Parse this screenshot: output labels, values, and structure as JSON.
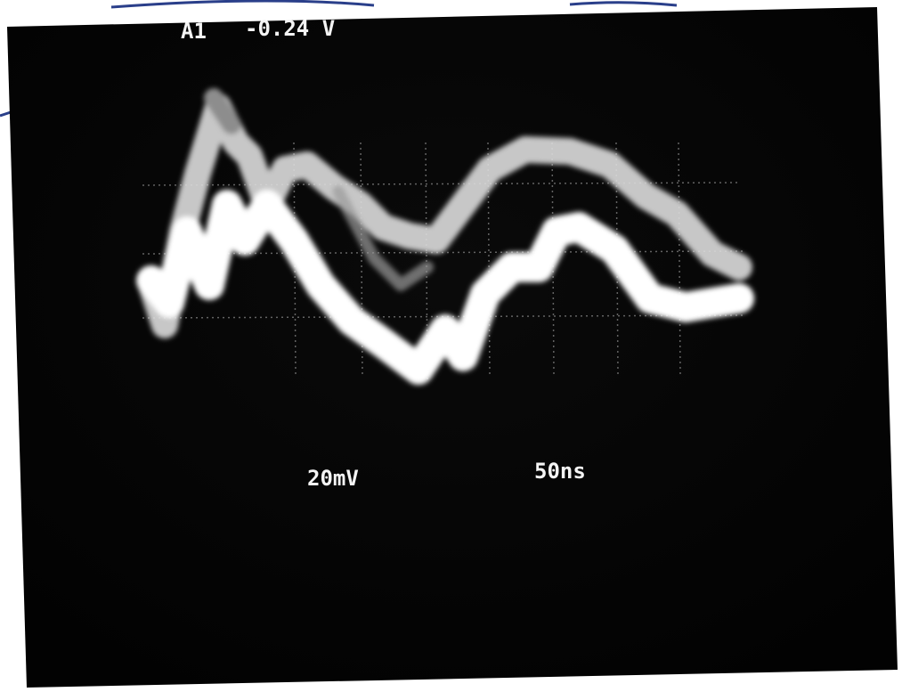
{
  "readout": {
    "channel": "A1",
    "level": "-0.24 V"
  },
  "scale": {
    "volts_per_div": "20mV",
    "time_per_div": "50ns"
  }
}
